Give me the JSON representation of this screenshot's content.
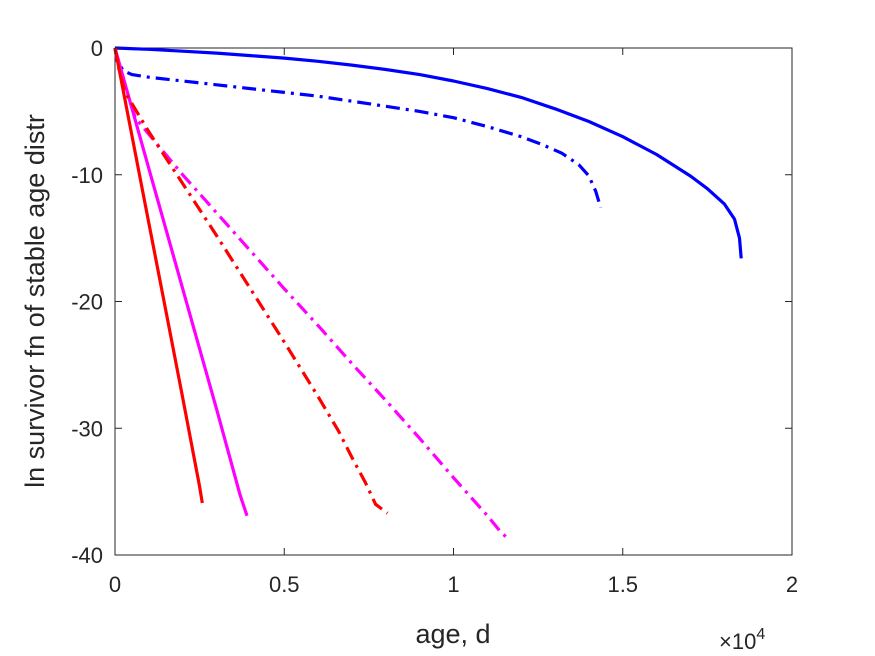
{
  "chart_data": {
    "type": "line",
    "xlabel": "age, d",
    "ylabel": "ln survivor fn of stable age distr",
    "x_exponent_label": "×10",
    "x_exponent_power": "4",
    "xlim": [
      0,
      20000
    ],
    "ylim": [
      -40,
      0
    ],
    "xticks": [
      0,
      5000,
      10000,
      15000,
      20000
    ],
    "xtick_labels": [
      "0",
      "0.5",
      "1",
      "1.5",
      "2"
    ],
    "yticks": [
      0,
      -10,
      -20,
      -30,
      -40
    ],
    "ytick_labels": [
      "0",
      "-10",
      "-20",
      "-30",
      "-40"
    ],
    "grid": false,
    "series": [
      {
        "color": "#0000ff",
        "style": "solid",
        "x": [
          0,
          1000,
          2000,
          3000,
          4000,
          5000,
          6000,
          7000,
          8000,
          9000,
          10000,
          11000,
          12000,
          13000,
          14000,
          15000,
          16000,
          17000,
          17500,
          18000,
          18300,
          18450,
          18500
        ],
        "y": [
          0,
          -0.1,
          -0.25,
          -0.4,
          -0.6,
          -0.8,
          -1.05,
          -1.35,
          -1.7,
          -2.1,
          -2.6,
          -3.2,
          -3.9,
          -4.8,
          -5.8,
          -7.0,
          -8.4,
          -10.1,
          -11.1,
          -12.3,
          -13.5,
          -15.0,
          -16.6
        ]
      },
      {
        "color": "#0000ff",
        "style": "dashdot",
        "x": [
          0,
          100,
          250,
          500,
          1000,
          2000,
          3000,
          4000,
          5000,
          6000,
          7000,
          8000,
          9000,
          10000,
          11000,
          12000,
          12600,
          13200,
          13700,
          14000,
          14200,
          14350
        ],
        "y": [
          0,
          -1.2,
          -1.8,
          -2.1,
          -2.3,
          -2.6,
          -2.9,
          -3.2,
          -3.5,
          -3.8,
          -4.2,
          -4.6,
          -5.0,
          -5.5,
          -6.2,
          -7.0,
          -7.6,
          -8.3,
          -9.2,
          -10.1,
          -11.3,
          -12.6
        ]
      },
      {
        "color": "#ff00ff",
        "style": "solid",
        "x": [
          0,
          1000,
          2000,
          3000,
          3700,
          3900
        ],
        "y": [
          0,
          -9.5,
          -19,
          -28.5,
          -35.3,
          -36.9
        ]
      },
      {
        "color": "#ff00ff",
        "style": "dashdot",
        "x": [
          0,
          100,
          600,
          1000,
          2000,
          3000,
          4000,
          5000,
          6000,
          7000,
          8000,
          9000,
          10000,
          11000,
          11400,
          11650
        ],
        "y": [
          0,
          -1.5,
          -5.5,
          -6.8,
          -10.0,
          -13.0,
          -16.0,
          -19.0,
          -21.9,
          -24.9,
          -27.8,
          -30.8,
          -33.9,
          -36.9,
          -38.2,
          -38.8
        ]
      },
      {
        "color": "#ff0000",
        "style": "solid",
        "x": [
          0,
          500,
          1000,
          1500,
          2000,
          2500,
          2580
        ],
        "y": [
          0,
          -6.9,
          -13.8,
          -20.7,
          -27.6,
          -34.6,
          -35.9
        ]
      },
      {
        "color": "#ff0000",
        "style": "dashdot",
        "x": [
          0,
          100,
          300,
          1000,
          2000,
          3000,
          4000,
          5000,
          6000,
          6600,
          7000,
          7400,
          7700,
          8050
        ],
        "y": [
          0,
          -1.5,
          -3.5,
          -6.6,
          -10.7,
          -14.8,
          -19.0,
          -23.2,
          -27.5,
          -30.2,
          -32.3,
          -34.3,
          -36.0,
          -36.7
        ]
      }
    ]
  }
}
